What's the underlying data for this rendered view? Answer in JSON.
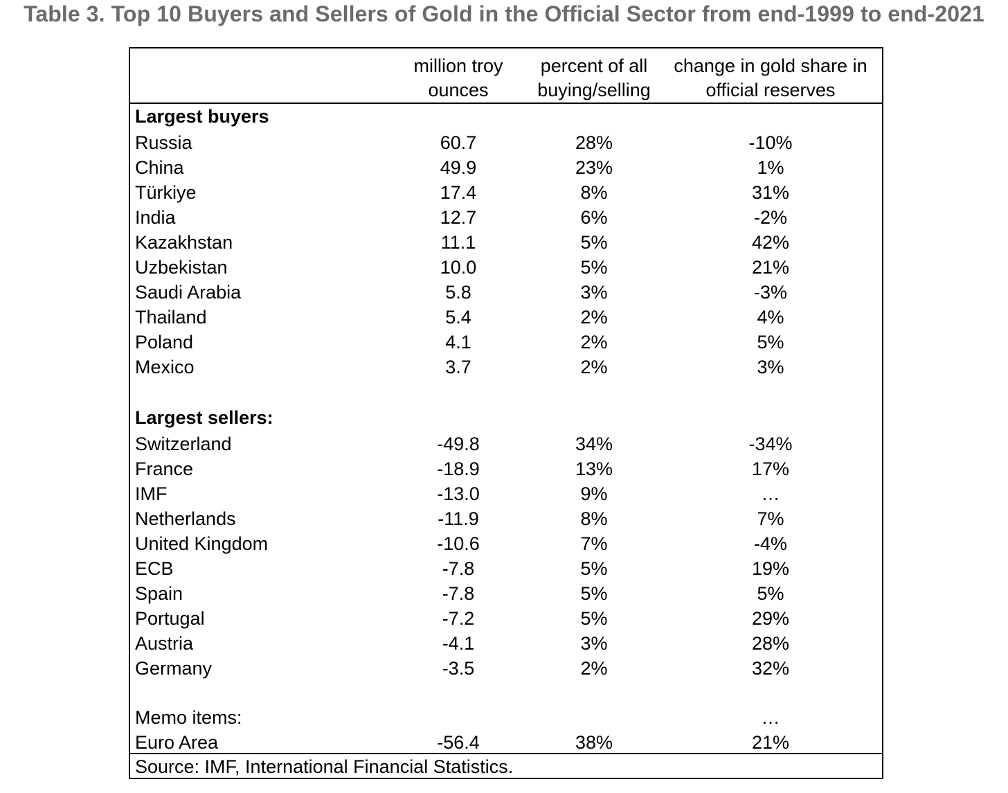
{
  "title": "Table 3. Top 10 Buyers and Sellers of Gold in the Official Sector from end-1999 to end-2021",
  "columns": [
    {
      "line1": "million troy",
      "line2": "ounces"
    },
    {
      "line1": "percent of all",
      "line2": "buying/selling"
    },
    {
      "line1": "change in gold share in",
      "line2": "official reserves"
    }
  ],
  "buyers_heading": "Largest buyers",
  "buyers": [
    {
      "name": "Russia",
      "ounces": "60.7",
      "percent": "28%",
      "change": "-10%"
    },
    {
      "name": "China",
      "ounces": "49.9",
      "percent": "23%",
      "change": "1%"
    },
    {
      "name": "Türkiye",
      "ounces": "17.4",
      "percent": "8%",
      "change": "31%"
    },
    {
      "name": "India",
      "ounces": "12.7",
      "percent": "6%",
      "change": "-2%"
    },
    {
      "name": "Kazakhstan",
      "ounces": "11.1",
      "percent": "5%",
      "change": "42%"
    },
    {
      "name": "Uzbekistan",
      "ounces": "10.0",
      "percent": "5%",
      "change": "21%"
    },
    {
      "name": "Saudi Arabia",
      "ounces": "5.8",
      "percent": "3%",
      "change": "-3%"
    },
    {
      "name": "Thailand",
      "ounces": "5.4",
      "percent": "2%",
      "change": "4%"
    },
    {
      "name": "Poland",
      "ounces": "4.1",
      "percent": "2%",
      "change": "5%"
    },
    {
      "name": "Mexico",
      "ounces": "3.7",
      "percent": "2%",
      "change": "3%"
    }
  ],
  "sellers_heading": "Largest sellers:",
  "sellers": [
    {
      "name": "Switzerland",
      "ounces": "-49.8",
      "percent": "34%",
      "change": "-34%"
    },
    {
      "name": "France",
      "ounces": "-18.9",
      "percent": "13%",
      "change": "17%"
    },
    {
      "name": "IMF",
      "ounces": "-13.0",
      "percent": "9%",
      "change": "…"
    },
    {
      "name": "Netherlands",
      "ounces": "-11.9",
      "percent": "8%",
      "change": "7%"
    },
    {
      "name": "United Kingdom",
      "ounces": "-10.6",
      "percent": "7%",
      "change": "-4%"
    },
    {
      "name": "ECB",
      "ounces": "-7.8",
      "percent": "5%",
      "change": "19%"
    },
    {
      "name": "Spain",
      "ounces": "-7.8",
      "percent": "5%",
      "change": "5%"
    },
    {
      "name": "Portugal",
      "ounces": "-7.2",
      "percent": "5%",
      "change": "29%"
    },
    {
      "name": "Austria",
      "ounces": "-4.1",
      "percent": "3%",
      "change": "28%"
    },
    {
      "name": "Germany",
      "ounces": "-3.5",
      "percent": "2%",
      "change": "32%"
    }
  ],
  "memo_heading": {
    "name": "Memo items:",
    "change": "…"
  },
  "memo": [
    {
      "name": "Euro Area",
      "ounces": "-56.4",
      "percent": "38%",
      "change": "21%"
    }
  ],
  "source": "Source: IMF, International Financial Statistics."
}
